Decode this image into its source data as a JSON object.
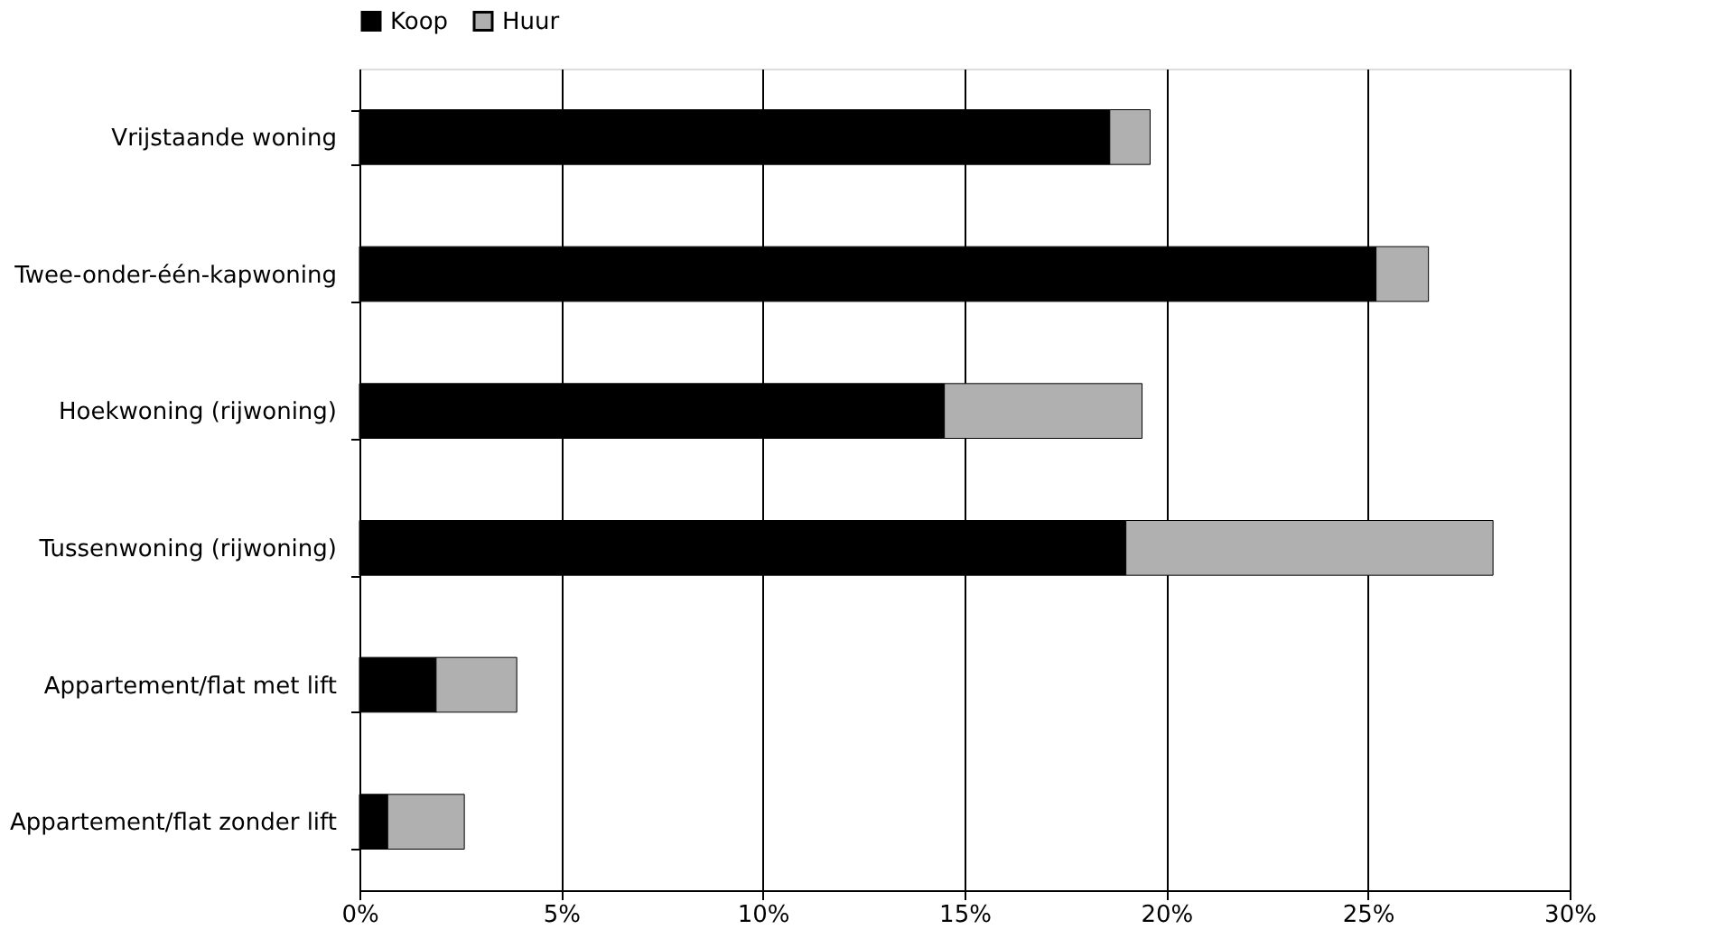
{
  "chart_data": {
    "type": "bar",
    "orientation": "horizontal",
    "stacked": true,
    "categories": [
      "Vrijstaande woning",
      "Twee-onder-één-kapwoning",
      "Hoekwoning (rijwoning)",
      "Tussenwoning (rijwoning)",
      "Appartement/flat met lift",
      "Appartement/flat zonder lift"
    ],
    "series": [
      {
        "name": "Koop",
        "color": "#000000",
        "values": [
          18.6,
          25.2,
          14.5,
          19.0,
          1.9,
          0.7
        ]
      },
      {
        "name": "Huur",
        "color": "#b0b0b0",
        "values": [
          1.0,
          1.3,
          4.9,
          9.1,
          2.0,
          1.9
        ]
      }
    ],
    "xlim": [
      0,
      30
    ],
    "xticks": [
      {
        "value": 0,
        "label": "0%"
      },
      {
        "value": 5,
        "label": "5%"
      },
      {
        "value": 10,
        "label": "10%"
      },
      {
        "value": 15,
        "label": "15%"
      },
      {
        "value": 20,
        "label": "20%"
      },
      {
        "value": 25,
        "label": "25%"
      },
      {
        "value": 30,
        "label": "30%"
      }
    ],
    "grid": "x",
    "legend": "top"
  }
}
